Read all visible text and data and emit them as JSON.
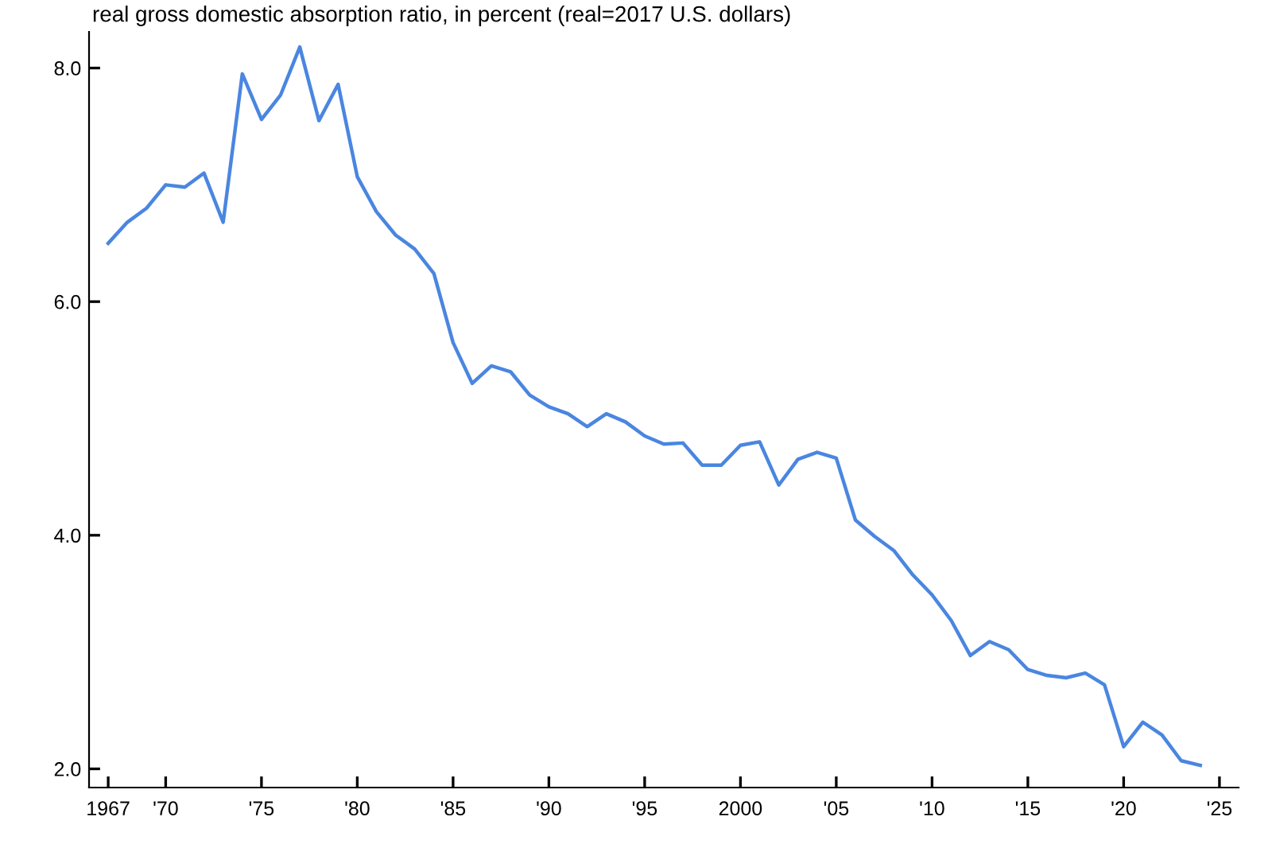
{
  "chart_data": {
    "type": "line",
    "title": "real gross domestic absorption ratio, in percent (real=2017 U.S. dollars)",
    "x": [
      1967,
      1968,
      1969,
      1970,
      1971,
      1972,
      1973,
      1974,
      1975,
      1976,
      1977,
      1978,
      1979,
      1980,
      1981,
      1982,
      1983,
      1984,
      1985,
      1986,
      1987,
      1988,
      1989,
      1990,
      1991,
      1992,
      1993,
      1994,
      1995,
      1996,
      1997,
      1998,
      1999,
      2000,
      2001,
      2002,
      2003,
      2004,
      2005,
      2006,
      2007,
      2008,
      2009,
      2010,
      2011,
      2012,
      2013,
      2014,
      2015,
      2016,
      2017,
      2018,
      2019,
      2020,
      2021,
      2022,
      2023,
      2024
    ],
    "series": [
      {
        "color": "#4a86e0",
        "values": [
          6.5,
          6.68,
          6.8,
          7.0,
          6.98,
          7.1,
          6.68,
          7.95,
          7.56,
          7.77,
          8.18,
          7.55,
          7.86,
          7.07,
          6.77,
          6.57,
          6.45,
          6.24,
          5.65,
          5.3,
          5.45,
          5.4,
          5.2,
          5.1,
          5.04,
          4.93,
          5.04,
          4.97,
          4.85,
          4.78,
          4.79,
          4.6,
          4.6,
          4.77,
          4.8,
          4.43,
          4.65,
          4.71,
          4.66,
          4.13,
          3.99,
          3.87,
          3.66,
          3.49,
          3.27,
          2.97,
          3.09,
          3.02,
          2.85,
          2.8,
          2.78,
          2.82,
          2.72,
          2.19,
          2.4,
          2.29,
          2.07,
          2.03
        ]
      }
    ],
    "xlim": [
      1966,
      2026
    ],
    "xticks": [
      1967,
      {
        "value": 1970,
        "label": "'70"
      },
      {
        "value": 1975,
        "label": "'75"
      },
      {
        "value": 1980,
        "label": "'80"
      },
      {
        "value": 1985,
        "label": "'85"
      },
      {
        "value": 1990,
        "label": "'90"
      },
      {
        "value": 1995,
        "label": "'95"
      },
      2000,
      {
        "value": 2005,
        "label": "'05"
      },
      {
        "value": 2010,
        "label": "'10"
      },
      {
        "value": 2015,
        "label": "'15"
      },
      {
        "value": 2020,
        "label": "'20"
      },
      {
        "value": 2025,
        "label": "'25"
      }
    ],
    "ylim": [
      1.84,
      8.31
    ],
    "yticks": [
      {
        "value": 2,
        "label": "2.0"
      },
      {
        "value": 4,
        "label": "4.0"
      },
      {
        "value": 6,
        "label": "6.0"
      },
      {
        "value": 8,
        "label": "8.0"
      }
    ],
    "grid": false,
    "legend": false,
    "marker": "none",
    "line_style": "solid"
  }
}
